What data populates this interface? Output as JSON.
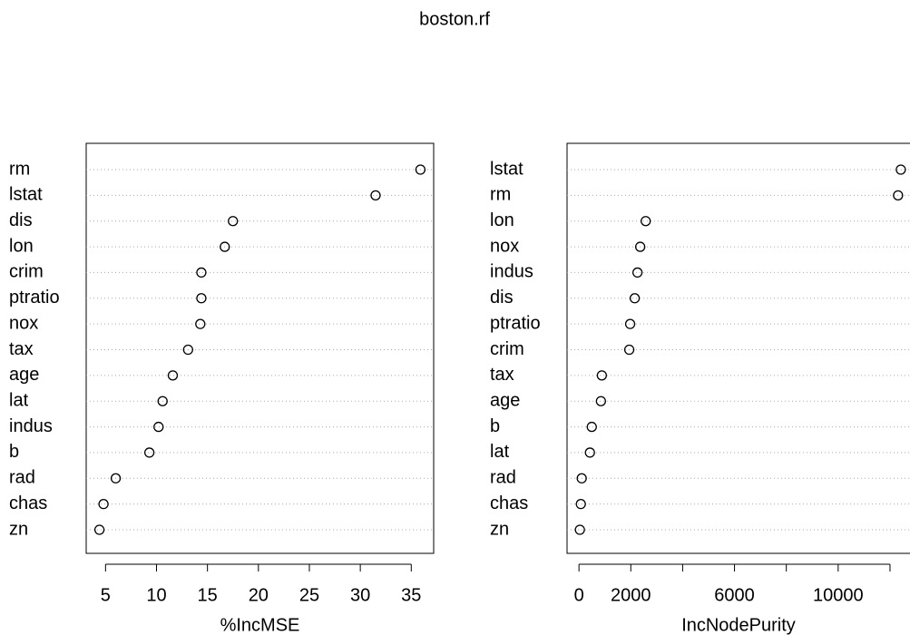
{
  "title": "boston.rf",
  "chart_data": [
    {
      "type": "dot",
      "xlabel": "%IncMSE",
      "categories": [
        "rm",
        "lstat",
        "dis",
        "lon",
        "crim",
        "ptratio",
        "nox",
        "tax",
        "age",
        "lat",
        "indus",
        "b",
        "rad",
        "chas",
        "zn"
      ],
      "values": [
        35.9,
        31.5,
        17.5,
        16.7,
        14.4,
        14.4,
        14.3,
        13.1,
        11.6,
        10.6,
        10.2,
        9.3,
        6.0,
        4.8,
        4.4
      ],
      "xlim": [
        3.1,
        37.2
      ],
      "xticks": [
        5,
        10,
        15,
        20,
        25,
        30,
        35
      ],
      "color": "#000000",
      "grid": true
    },
    {
      "type": "dot",
      "xlabel": "IncNodePurity",
      "categories": [
        "lstat",
        "rm",
        "lon",
        "nox",
        "indus",
        "dis",
        "ptratio",
        "crim",
        "tax",
        "age",
        "b",
        "lat",
        "rad",
        "chas",
        "zn"
      ],
      "values": [
        12416,
        12310,
        2575,
        2363,
        2257,
        2152,
        1975,
        1940,
        882,
        847,
        494,
        423,
        106,
        71,
        35
      ],
      "xlim": [
        -460,
        12911
      ],
      "xticks": [
        0,
        2000,
        {
          "value": 4000,
          "label": null
        },
        6000,
        {
          "value": 8000,
          "label": null
        },
        10000,
        {
          "value": 12000,
          "label": null
        }
      ],
      "color": "#000000",
      "grid": true
    }
  ]
}
